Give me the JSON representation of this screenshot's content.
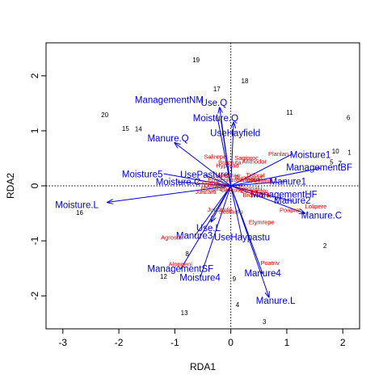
{
  "chart_data": {
    "type": "scatter",
    "title": "",
    "xlabel": "RDA1",
    "ylabel": "RDA2",
    "xlim": [
      -3.3,
      2.3
    ],
    "ylim": [
      -2.6,
      2.6
    ],
    "xticks": [
      -3,
      -2,
      -1,
      0,
      1,
      2
    ],
    "yticks": [
      -2,
      -1,
      0,
      1,
      2
    ],
    "reference_lines": {
      "x": 0,
      "y": 0,
      "style": "dotted"
    },
    "colors": {
      "sites": "#000000",
      "species": "#dd0000",
      "biplot": "#0000dd",
      "axes": "#000000"
    },
    "sites": [
      {
        "label": "1",
        "x": 2.12,
        "y": 0.6
      },
      {
        "label": "2",
        "x": 1.68,
        "y": -1.1
      },
      {
        "label": "3",
        "x": 0.6,
        "y": -2.48
      },
      {
        "label": "4",
        "x": 0.12,
        "y": -2.17
      },
      {
        "label": "5",
        "x": 1.8,
        "y": 0.42
      },
      {
        "label": "6",
        "x": 2.1,
        "y": 1.23
      },
      {
        "label": "7",
        "x": 1.95,
        "y": 0.4
      },
      {
        "label": "8",
        "x": -0.78,
        "y": -1.25
      },
      {
        "label": "9",
        "x": 0.06,
        "y": -1.7
      },
      {
        "label": "10",
        "x": 1.87,
        "y": 0.62
      },
      {
        "label": "11",
        "x": 1.05,
        "y": 1.32
      },
      {
        "label": "12",
        "x": -1.2,
        "y": -1.66
      },
      {
        "label": "13",
        "x": -0.83,
        "y": -2.32
      },
      {
        "label": "14",
        "x": -1.65,
        "y": 1.02
      },
      {
        "label": "15",
        "x": -1.88,
        "y": 1.03
      },
      {
        "label": "16",
        "x": -2.7,
        "y": -0.5
      },
      {
        "label": "17",
        "x": -0.25,
        "y": 1.75
      },
      {
        "label": "18",
        "x": 0.25,
        "y": 1.9
      },
      {
        "label": "19",
        "x": -0.62,
        "y": 2.28
      },
      {
        "label": "20",
        "x": -2.25,
        "y": 1.28
      }
    ],
    "species": [
      {
        "label": "Planlan",
        "x": 0.85,
        "y": 0.57
      },
      {
        "label": "Salirepe",
        "x": -0.28,
        "y": 0.52
      },
      {
        "label": "Sagiproc",
        "x": 0.28,
        "y": 0.5
      },
      {
        "label": "Anthodor",
        "x": 0.42,
        "y": 0.43
      },
      {
        "label": "Bracruta",
        "x": -0.02,
        "y": 0.42
      },
      {
        "label": "Hyporad",
        "x": -0.06,
        "y": 0.36
      },
      {
        "label": "Airaprae",
        "x": -0.04,
        "y": 0.18
      },
      {
        "label": "Rumeacet",
        "x": 0.32,
        "y": 0.14
      },
      {
        "label": "Trifprat",
        "x": 0.44,
        "y": 0.18
      },
      {
        "label": "Lotucorn",
        "x": 0.2,
        "y": 0.1
      },
      {
        "label": "Vicilath",
        "x": 0.36,
        "y": 0.1
      },
      {
        "label": "Achimill",
        "x": 0.55,
        "y": 0.08
      },
      {
        "label": "Cirsarve",
        "x": -0.4,
        "y": 0.05
      },
      {
        "label": "Empenigr",
        "x": -0.18,
        "y": 0.1
      },
      {
        "label": "Chenalbu",
        "x": -0.25,
        "y": 0.0
      },
      {
        "label": "Ranuflam",
        "x": -0.3,
        "y": -0.06
      },
      {
        "label": "Callcusp",
        "x": 0.02,
        "y": -0.08
      },
      {
        "label": "Eleopalu",
        "x": 0.35,
        "y": -0.05
      },
      {
        "label": "Comapalu",
        "x": 0.42,
        "y": -0.1
      },
      {
        "label": "Juncarti",
        "x": -0.45,
        "y": -0.12
      },
      {
        "label": "Bromhord",
        "x": 0.45,
        "y": -0.18
      },
      {
        "label": "Juncbufo",
        "x": -0.2,
        "y": -0.44
      },
      {
        "label": "Scorautu",
        "x": 0.0,
        "y": -0.48
      },
      {
        "label": "Lolipere",
        "x": 1.52,
        "y": -0.38
      },
      {
        "label": "Poaprat",
        "x": 1.06,
        "y": -0.45
      },
      {
        "label": "Elymrepe",
        "x": 0.55,
        "y": -0.67
      },
      {
        "label": "Agrostol",
        "x": -1.05,
        "y": -0.95
      },
      {
        "label": "Alopgeni",
        "x": -0.9,
        "y": -1.43
      },
      {
        "label": "Poatriv",
        "x": 0.7,
        "y": -1.41
      }
    ],
    "biplot": [
      {
        "label": "ManagementNM",
        "x": -0.25,
        "y": 1.3,
        "arrow": false,
        "lx": -1.1,
        "ly": 1.55
      },
      {
        "label": "Use.Q",
        "x": -0.2,
        "y": 1.42,
        "arrow": true,
        "lx": -0.3,
        "ly": 1.5
      },
      {
        "label": "Moisture.Q",
        "x": -0.18,
        "y": 1.22,
        "arrow": false,
        "lx": -0.27,
        "ly": 1.22
      },
      {
        "label": "UseHayfield",
        "x": 0.05,
        "y": 1.15,
        "arrow": true,
        "lx": 0.08,
        "ly": 0.95
      },
      {
        "label": "Manure.Q",
        "x": -1.0,
        "y": 0.78,
        "arrow": true,
        "lx": -1.12,
        "ly": 0.85
      },
      {
        "label": "Moisture1",
        "x": 1.1,
        "y": 0.58,
        "arrow": false,
        "lx": 1.42,
        "ly": 0.55
      },
      {
        "label": "ManagementBF",
        "x": 1.6,
        "y": 0.32,
        "arrow": false,
        "lx": 1.58,
        "ly": 0.32
      },
      {
        "label": "Moisture5",
        "x": -1.2,
        "y": 0.22,
        "arrow": false,
        "lx": -1.58,
        "ly": 0.2
      },
      {
        "label": "UsePasture",
        "x": -0.47,
        "y": 0.2,
        "arrow": false,
        "lx": -0.47,
        "ly": 0.19
      },
      {
        "label": "Moisture.C",
        "x": -0.95,
        "y": 0.07,
        "arrow": false,
        "lx": -0.94,
        "ly": 0.06
      },
      {
        "label": "Manure1",
        "x": 1.0,
        "y": 0.08,
        "arrow": false,
        "lx": 1.02,
        "ly": 0.07
      },
      {
        "label": "ManagementHF",
        "x": 0.6,
        "y": -0.15,
        "arrow": false,
        "lx": 0.95,
        "ly": -0.17
      },
      {
        "label": "Manure2",
        "x": 1.1,
        "y": -0.28,
        "arrow": false,
        "lx": 1.1,
        "ly": -0.28
      },
      {
        "label": "Manure.C",
        "x": 1.32,
        "y": -0.5,
        "arrow": true,
        "lx": 1.62,
        "ly": -0.55
      },
      {
        "label": "Moisture.L",
        "x": -2.2,
        "y": -0.3,
        "arrow": true,
        "lx": -2.75,
        "ly": -0.36
      },
      {
        "label": "Use.L",
        "x": -0.35,
        "y": -0.65,
        "arrow": true,
        "lx": -0.4,
        "ly": -0.78
      },
      {
        "label": "Manure3",
        "x": -0.65,
        "y": -0.92,
        "arrow": false,
        "lx": -0.65,
        "ly": -0.92
      },
      {
        "label": "UseHaypastu",
        "x": 0.2,
        "y": -0.95,
        "arrow": false,
        "lx": 0.2,
        "ly": -0.95
      },
      {
        "label": "ManagementSF",
        "x": -0.9,
        "y": -1.52,
        "arrow": false,
        "lx": -0.9,
        "ly": -1.52
      },
      {
        "label": "Moisture4",
        "x": -0.55,
        "y": -1.68,
        "arrow": false,
        "lx": -0.55,
        "ly": -1.68
      },
      {
        "label": "Manure4",
        "x": 0.57,
        "y": -1.6,
        "arrow": false,
        "lx": 0.57,
        "ly": -1.6
      },
      {
        "label": "Manure.L",
        "x": 0.68,
        "y": -2.02,
        "arrow": true,
        "lx": 0.8,
        "ly": -2.1
      }
    ]
  }
}
